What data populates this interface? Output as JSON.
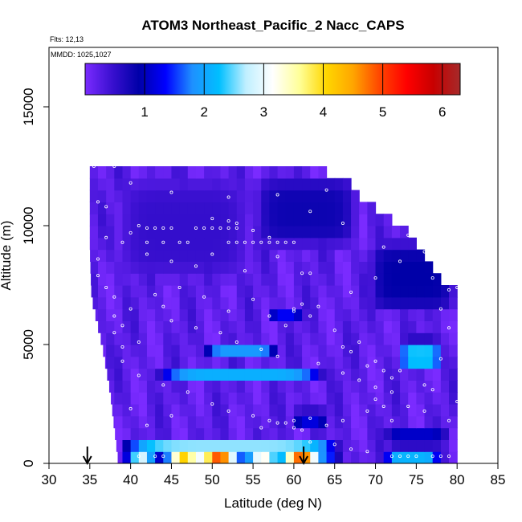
{
  "chart_data": {
    "type": "heatmap",
    "title": "ATOM3 Northeast_Pacific_2 Nacc_CAPS",
    "annotations": {
      "flights": "Flts: 12,13",
      "dates": "MMDD: 1025,1027"
    },
    "xlabel": "Latitude (deg N)",
    "ylabel": "Altitude (m)",
    "xlim": [
      30,
      85
    ],
    "ylim": [
      0,
      17500
    ],
    "x_ticks": [
      30,
      35,
      40,
      45,
      50,
      55,
      60,
      65,
      70,
      75,
      80,
      85
    ],
    "y_ticks": [
      0,
      5000,
      10000,
      15000
    ],
    "colorbar": {
      "range": [
        0,
        6.3
      ],
      "ticks": [
        1,
        2,
        3,
        4,
        5,
        6
      ],
      "colors": [
        "#7a2bff",
        "#3a10d0",
        "#0000a8",
        "#0000ff",
        "#1e90ff",
        "#00bfff",
        "#bfefff",
        "#ffffff",
        "#ffff99",
        "#ffd700",
        "#ffa500",
        "#ff4500",
        "#ff0000",
        "#c80000",
        "#a52a2a"
      ]
    },
    "arrows_at_latitude": [
      34.7,
      61.2
    ],
    "altitude_bin_m": 500,
    "domain_top_m": [
      {
        "lat": 35,
        "alt": 12500
      },
      {
        "lat": 50,
        "alt": 12400
      },
      {
        "lat": 64,
        "alt": 12300
      },
      {
        "lat": 66,
        "alt": 12000
      },
      {
        "lat": 68,
        "alt": 11200
      },
      {
        "lat": 70,
        "alt": 10700
      },
      {
        "lat": 72,
        "alt": 10300
      },
      {
        "lat": 74,
        "alt": 9700
      },
      {
        "lat": 76,
        "alt": 8700
      },
      {
        "lat": 78,
        "alt": 7500
      },
      {
        "lat": 80,
        "alt": 7400
      }
    ],
    "domain_left_lat": [
      {
        "alt": 0,
        "lat": 38.5
      },
      {
        "alt": 1500,
        "lat": 38
      },
      {
        "alt": 3000,
        "lat": 37.5
      },
      {
        "alt": 5000,
        "lat": 36.5
      },
      {
        "alt": 7000,
        "lat": 35.2
      },
      {
        "alt": 9000,
        "lat": 35
      },
      {
        "alt": 12500,
        "lat": 35
      }
    ],
    "background_value": 0.2,
    "features": [
      {
        "lat": [
          38.5,
          66
        ],
        "alt": [
          100,
          500
        ],
        "value": 4.6
      },
      {
        "lat": [
          38.5,
          66
        ],
        "alt": [
          500,
          900
        ],
        "value": 2.6
      },
      {
        "lat": [
          43,
          64
        ],
        "alt": [
          3400,
          4200
        ],
        "value": 2.1
      },
      {
        "lat": [
          49,
          58
        ],
        "alt": [
          4300,
          5200
        ],
        "value": 1.9
      },
      {
        "lat": [
          60,
          64
        ],
        "alt": [
          1500,
          2300
        ],
        "value": 1.2
      },
      {
        "lat": [
          57,
          61
        ],
        "alt": [
          6000,
          6600
        ],
        "value": 1.3
      },
      {
        "lat": [
          73,
          78
        ],
        "alt": [
          3800,
          5300
        ],
        "value": 2.3
      },
      {
        "lat": [
          71,
          79
        ],
        "alt": [
          700,
          1400
        ],
        "value": 1.2
      },
      {
        "lat": [
          71,
          78
        ],
        "alt": [
          100,
          600
        ],
        "value": 2.2
      },
      {
        "lat": [
          69,
          80
        ],
        "alt": [
          6200,
          9500
        ],
        "value": 0.9
      },
      {
        "lat": [
          38,
          55
        ],
        "alt": [
          7500,
          12300
        ],
        "value": 0.5
      },
      {
        "lat": [
          55,
          68
        ],
        "alt": [
          9000,
          12200
        ],
        "value": 0.8
      }
    ],
    "track_points": [
      [
        35.5,
        12500
      ],
      [
        38,
        12500
      ],
      [
        42,
        9300
      ],
      [
        44,
        9300
      ],
      [
        46,
        9300
      ],
      [
        47,
        9300
      ],
      [
        52,
        9300
      ],
      [
        53,
        9300
      ],
      [
        54,
        9300
      ],
      [
        55,
        9300
      ],
      [
        56,
        9300
      ],
      [
        57,
        9300
      ],
      [
        58,
        9300
      ],
      [
        59,
        9300
      ],
      [
        60,
        9300
      ],
      [
        50,
        10300
      ],
      [
        52,
        10200
      ],
      [
        53,
        10100
      ],
      [
        65,
        12300
      ],
      [
        67,
        12250
      ],
      [
        69,
        12100
      ],
      [
        73,
        10300
      ],
      [
        76,
        10300
      ],
      [
        78,
        10200
      ],
      [
        41,
        10000
      ],
      [
        42,
        9900
      ],
      [
        43,
        9900
      ],
      [
        44,
        9900
      ],
      [
        45,
        9900
      ],
      [
        48,
        9900
      ],
      [
        49,
        9900
      ],
      [
        50,
        9900
      ],
      [
        51,
        9900
      ],
      [
        52,
        9900
      ],
      [
        53,
        9900
      ],
      [
        37,
        9500
      ],
      [
        40,
        9700
      ],
      [
        55,
        9800
      ],
      [
        57,
        9500
      ],
      [
        61,
        8000
      ],
      [
        62,
        8000
      ],
      [
        45,
        8500
      ],
      [
        50,
        8800
      ],
      [
        38,
        7000
      ],
      [
        40,
        6500
      ],
      [
        43,
        7100
      ],
      [
        45,
        6000
      ],
      [
        48,
        5700
      ],
      [
        51,
        5500
      ],
      [
        53,
        5100
      ],
      [
        56,
        4800
      ],
      [
        58,
        4500
      ],
      [
        63,
        4200
      ],
      [
        66,
        4900
      ],
      [
        68,
        5100
      ],
      [
        70,
        4300
      ],
      [
        71,
        3900
      ],
      [
        73,
        3900
      ],
      [
        72,
        3000
      ],
      [
        69,
        2200
      ],
      [
        66,
        1800
      ],
      [
        64,
        1600
      ],
      [
        62,
        1900
      ],
      [
        60,
        1500
      ],
      [
        56,
        1500
      ],
      [
        57,
        1800
      ],
      [
        58,
        1700
      ],
      [
        59,
        1700
      ],
      [
        60,
        1800
      ],
      [
        61,
        1400
      ],
      [
        62,
        900
      ],
      [
        65,
        800
      ],
      [
        67,
        600
      ],
      [
        69,
        500
      ],
      [
        41,
        300
      ],
      [
        43,
        300
      ],
      [
        44,
        300
      ],
      [
        72,
        300
      ],
      [
        73,
        300
      ],
      [
        74,
        300
      ],
      [
        75,
        300
      ],
      [
        77,
        300
      ],
      [
        78,
        300
      ],
      [
        79,
        300
      ],
      [
        38,
        5500
      ],
      [
        39,
        4900
      ],
      [
        41,
        3700
      ],
      [
        44,
        3300
      ],
      [
        47,
        3000
      ],
      [
        50,
        2500
      ],
      [
        52,
        2200
      ],
      [
        55,
        2000
      ],
      [
        60,
        6400
      ],
      [
        63,
        6600
      ],
      [
        67,
        7200
      ],
      [
        70,
        7800
      ],
      [
        73,
        8500
      ],
      [
        76,
        8900
      ],
      [
        79,
        7300
      ],
      [
        80,
        7400
      ],
      [
        60,
        6500
      ],
      [
        61,
        6700
      ],
      [
        36,
        11000
      ],
      [
        37,
        10800
      ],
      [
        39,
        9300
      ],
      [
        42,
        8800
      ],
      [
        48,
        8300
      ],
      [
        54,
        8100
      ],
      [
        58,
        8700
      ],
      [
        40,
        11800
      ],
      [
        45,
        11400
      ],
      [
        52,
        11200
      ],
      [
        58,
        11300
      ],
      [
        62,
        10600
      ],
      [
        64,
        11500
      ],
      [
        66,
        10100
      ],
      [
        71,
        9100
      ],
      [
        74,
        9600
      ],
      [
        77,
        7800
      ],
      [
        78,
        6500
      ],
      [
        79,
        5700
      ],
      [
        76,
        3300
      ],
      [
        74,
        2400
      ],
      [
        72,
        1800
      ],
      [
        70,
        2700
      ],
      [
        68,
        3500
      ],
      [
        66,
        3800
      ],
      [
        40,
        2300
      ],
      [
        42,
        1600
      ],
      [
        45,
        2000
      ],
      [
        39,
        4300
      ],
      [
        41,
        5100
      ],
      [
        36,
        7900
      ],
      [
        36,
        8600
      ],
      [
        37,
        7400
      ],
      [
        38,
        6200
      ],
      [
        39,
        5800
      ],
      [
        44,
        6600
      ],
      [
        46,
        7400
      ],
      [
        49,
        7000
      ],
      [
        52,
        6400
      ],
      [
        55,
        6900
      ],
      [
        57,
        6200
      ],
      [
        59,
        5800
      ],
      [
        62,
        6200
      ],
      [
        65,
        5600
      ],
      [
        67,
        4700
      ],
      [
        69,
        4100
      ],
      [
        70,
        3200
      ],
      [
        71,
        2400
      ],
      [
        72,
        3600
      ],
      [
        78,
        4400
      ],
      [
        77,
        3100
      ],
      [
        76,
        2200
      ],
      [
        79,
        1800
      ],
      [
        80,
        2600
      ]
    ]
  }
}
